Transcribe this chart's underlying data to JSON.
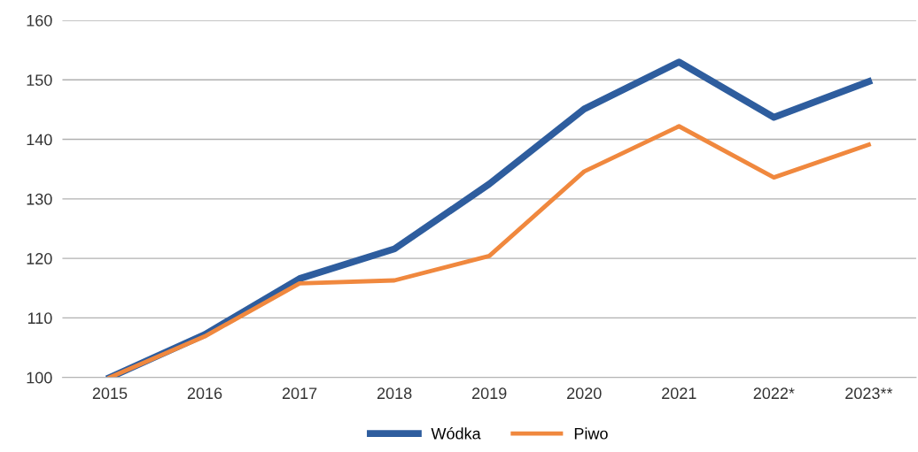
{
  "chart_data": {
    "type": "line",
    "categories": [
      "2015",
      "2016",
      "2017",
      "2018",
      "2019",
      "2020",
      "2021",
      "2022*",
      "2023**"
    ],
    "series": [
      {
        "name": "Wódka",
        "color": "#2e5d9e",
        "values": [
          100,
          107.2,
          116.6,
          121.6,
          132.5,
          145.1,
          153.0,
          143.7,
          149.7
        ]
      },
      {
        "name": "Piwo",
        "color": "#f0883e",
        "values": [
          100,
          106.9,
          115.8,
          116.3,
          120.4,
          134.6,
          142.2,
          133.6,
          139.1
        ]
      }
    ],
    "ylim": [
      100,
      160
    ],
    "yticks": [
      100,
      110,
      120,
      130,
      140,
      150,
      160
    ],
    "grid": "y",
    "legend": "bottom",
    "marker": "none",
    "line_style": "solid"
  }
}
